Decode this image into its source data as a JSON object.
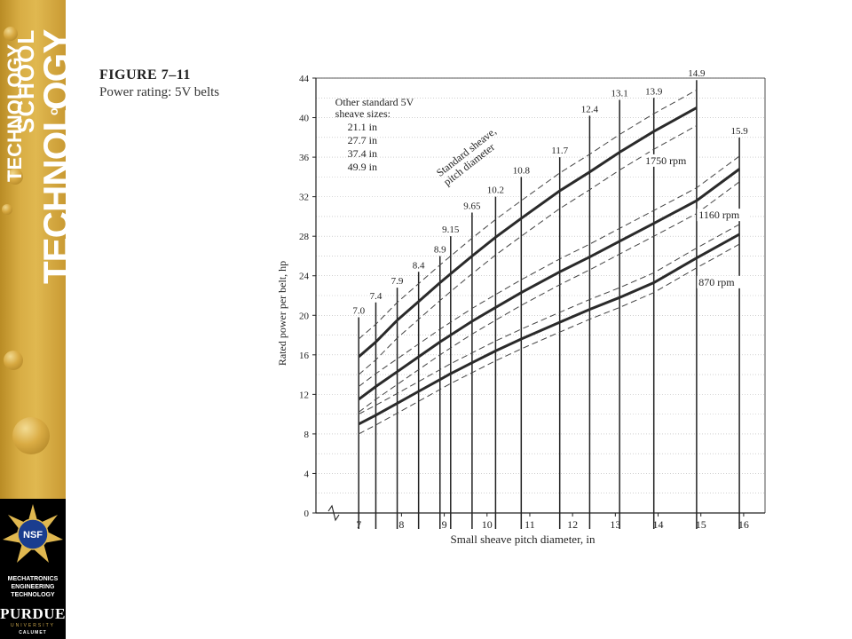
{
  "sidebar": {
    "school_word": "SCHOOL",
    "of_word": "of",
    "technology_word": "TECHNOLOGY",
    "nsf_badge": "NSF",
    "program_lines": [
      "MECHATRONICS",
      "ENGINEERING",
      "TECHNOLOGY"
    ],
    "purdue_word": "PURDUE",
    "university_word": "UNIVERSITY",
    "calumet_word": "CALUMET",
    "colors": {
      "gold": "#d8ad44",
      "black": "#000000",
      "nsf_blue": "#1a3d8f"
    }
  },
  "figure": {
    "label": "FIGURE 7–11",
    "caption": "Power rating: 5V belts"
  },
  "chart_data": {
    "type": "line",
    "xlabel": "Small sheave pitch diameter, in",
    "ylabel": "Rated power per belt, hp",
    "xlim": [
      6,
      16.5
    ],
    "ylim": [
      0,
      44
    ],
    "x_ticks": [
      7,
      8,
      9,
      10,
      11,
      12,
      13,
      14,
      15,
      16
    ],
    "y_ticks": [
      0,
      4,
      8,
      12,
      16,
      20,
      24,
      28,
      32,
      36,
      40,
      44
    ],
    "axis_break_marker": true,
    "grid": "horizontal",
    "series": [
      {
        "name": "1750 rpm",
        "label_pos": [
          13.7,
          35.3
        ],
        "x": [
          7.0,
          7.4,
          7.9,
          8.4,
          8.9,
          9.15,
          9.65,
          10.2,
          10.8,
          11.7,
          12.4,
          13.1,
          13.9,
          14.9
        ],
        "y": [
          15.8,
          17.3,
          19.5,
          21.4,
          23.3,
          24.2,
          26.0,
          27.9,
          29.8,
          32.6,
          34.5,
          36.5,
          38.6,
          41.0
        ]
      },
      {
        "name": "1160 rpm",
        "label_pos": [
          14.95,
          29.8
        ],
        "x": [
          7.0,
          7.4,
          7.9,
          8.4,
          8.9,
          9.15,
          9.65,
          10.2,
          10.8,
          11.7,
          12.4,
          13.1,
          13.9,
          14.9,
          15.9
        ],
        "y": [
          11.5,
          12.8,
          14.3,
          15.8,
          17.3,
          18.0,
          19.4,
          20.8,
          22.3,
          24.4,
          25.9,
          27.5,
          29.3,
          31.6,
          34.8
        ]
      },
      {
        "name": "870 rpm",
        "label_pos": [
          14.95,
          23.0
        ],
        "x": [
          7.0,
          7.4,
          7.9,
          8.4,
          8.9,
          9.15,
          9.65,
          10.2,
          10.8,
          11.7,
          12.4,
          13.1,
          13.9,
          14.9,
          15.9
        ],
        "y": [
          9.0,
          9.9,
          11.1,
          12.3,
          13.5,
          14.1,
          15.2,
          16.4,
          17.6,
          19.3,
          20.6,
          21.8,
          23.3,
          25.8,
          28.2
        ]
      }
    ],
    "dashed_offsets": [
      1.8,
      1.3,
      1.0
    ],
    "sheave_sizes": [
      {
        "label": "7.0",
        "x": 7.0,
        "top": 19.8
      },
      {
        "label": "7.4",
        "x": 7.4,
        "top": 21.3
      },
      {
        "label": "7.9",
        "x": 7.9,
        "top": 22.8
      },
      {
        "label": "8.4",
        "x": 8.4,
        "top": 24.4
      },
      {
        "label": "8.9",
        "x": 8.9,
        "top": 26.0
      },
      {
        "label": "9.15",
        "x": 9.15,
        "top": 28.0
      },
      {
        "label": "9.65",
        "x": 9.65,
        "top": 30.4
      },
      {
        "label": "10.2",
        "x": 10.2,
        "top": 32.0
      },
      {
        "label": "10.8",
        "x": 10.8,
        "top": 34.0
      },
      {
        "label": "11.7",
        "x": 11.7,
        "top": 36.0
      },
      {
        "label": "12.4",
        "x": 12.4,
        "top": 40.2
      },
      {
        "label": "13.1",
        "x": 13.1,
        "top": 41.8
      },
      {
        "label": "13.9",
        "x": 13.9,
        "top": 42.0
      },
      {
        "label": "14.9",
        "x": 14.9,
        "top": 43.8
      },
      {
        "label": "15.9",
        "x": 15.9,
        "top": 38.0
      }
    ],
    "annotations": {
      "other_sizes_title": [
        "Other standard 5V",
        "sheave sizes:"
      ],
      "other_sizes": [
        "21.1 in",
        "27.7 in",
        "37.4 in",
        "49.9 in"
      ],
      "standard_sheave_label": [
        "Standard sheave,",
        "pitch diameter"
      ]
    }
  }
}
